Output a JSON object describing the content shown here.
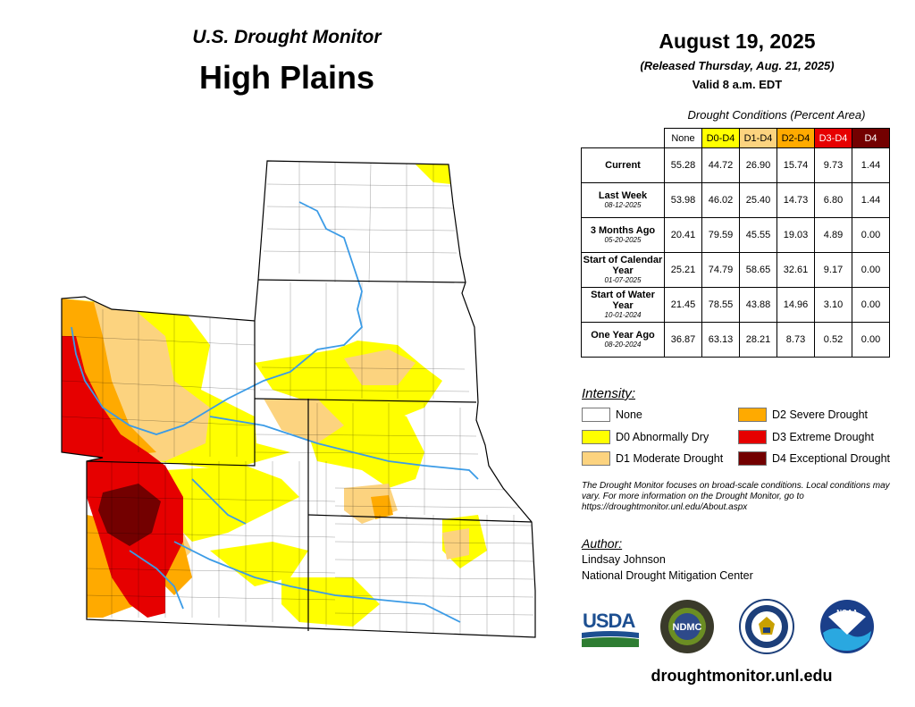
{
  "header": {
    "product": "U.S. Drought Monitor",
    "region": "High Plains",
    "date": "August 19, 2025",
    "released": "(Released Thursday, Aug. 21, 2025)",
    "valid": "Valid 8 a.m. EDT"
  },
  "table": {
    "caption": "Drought Conditions (Percent Area)",
    "columns": [
      {
        "label": "None",
        "color": "#ffffff",
        "text_color": "#000000"
      },
      {
        "label": "D0-D4",
        "color": "#ffff00",
        "text_color": "#000000"
      },
      {
        "label": "D1-D4",
        "color": "#fcd37f",
        "text_color": "#000000"
      },
      {
        "label": "D2-D4",
        "color": "#ffaa00",
        "text_color": "#000000"
      },
      {
        "label": "D3-D4",
        "color": "#e60000",
        "text_color": "#ffffff"
      },
      {
        "label": "D4",
        "color": "#730000",
        "text_color": "#ffffff"
      }
    ],
    "rows": [
      {
        "label": "Current",
        "sub": "",
        "values": [
          "55.28",
          "44.72",
          "26.90",
          "15.74",
          "9.73",
          "1.44"
        ]
      },
      {
        "label": "Last Week",
        "sub": "08-12-2025",
        "values": [
          "53.98",
          "46.02",
          "25.40",
          "14.73",
          "6.80",
          "1.44"
        ]
      },
      {
        "label": "3 Months Ago",
        "sub": "05-20-2025",
        "values": [
          "20.41",
          "79.59",
          "45.55",
          "19.03",
          "4.89",
          "0.00"
        ]
      },
      {
        "label": "Start of Calendar Year",
        "sub": "01-07-2025",
        "values": [
          "25.21",
          "74.79",
          "58.65",
          "32.61",
          "9.17",
          "0.00"
        ]
      },
      {
        "label": "Start of Water Year",
        "sub": "10-01-2024",
        "values": [
          "21.45",
          "78.55",
          "43.88",
          "14.96",
          "3.10",
          "0.00"
        ]
      },
      {
        "label": "One Year Ago",
        "sub": "08-20-2024",
        "values": [
          "36.87",
          "63.13",
          "28.21",
          "8.73",
          "0.52",
          "0.00"
        ]
      }
    ]
  },
  "legend": {
    "title": "Intensity:",
    "items": [
      {
        "label": "None",
        "color": "#ffffff"
      },
      {
        "label": "D0 Abnormally Dry",
        "color": "#ffff00"
      },
      {
        "label": "D1 Moderate Drought",
        "color": "#fcd37f"
      },
      {
        "label": "D2 Severe Drought",
        "color": "#ffaa00"
      },
      {
        "label": "D3 Extreme Drought",
        "color": "#e60000"
      },
      {
        "label": "D4 Exceptional Drought",
        "color": "#730000"
      }
    ]
  },
  "disclaimer": "The Drought Monitor focuses on broad-scale conditions. Local conditions may vary. For more information on the Drought Monitor, go to https://droughtmonitor.unl.edu/About.aspx",
  "author": {
    "label": "Author:",
    "name": "Lindsay Johnson",
    "org": "National Drought Mitigation Center"
  },
  "logos": {
    "usda": "USDA",
    "ndmc": "NDMC",
    "noaa": "NOAA"
  },
  "url": "droughtmonitor.unl.edu",
  "map": {
    "states": [
      "North Dakota",
      "South Dakota",
      "Nebraska",
      "Kansas",
      "Wyoming",
      "Colorado"
    ],
    "river_color": "#3b9be6",
    "border_color": "#000000"
  }
}
